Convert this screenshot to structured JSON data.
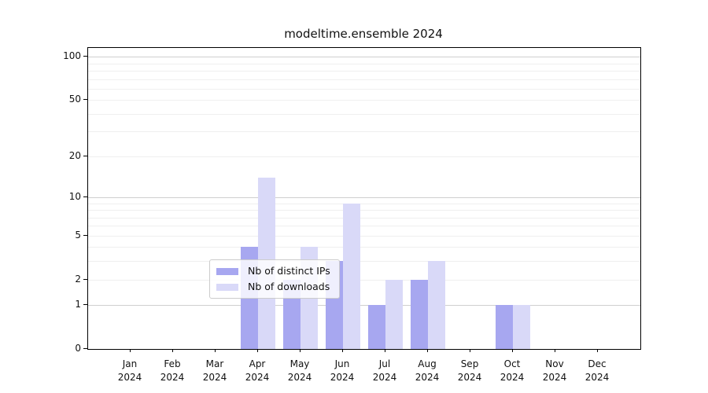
{
  "chart_data": {
    "type": "bar",
    "title": "modeltime.ensemble 2024",
    "x_axis": {
      "categories": [
        "Jan",
        "Feb",
        "Mar",
        "Apr",
        "May",
        "Jun",
        "Jul",
        "Aug",
        "Sep",
        "Oct",
        "Nov",
        "Dec"
      ],
      "year_line": "2024"
    },
    "y_axis": {
      "scale": "log1p",
      "tick_values": [
        100,
        50,
        20,
        10,
        5,
        2,
        1,
        0
      ],
      "tick_labels": [
        "100",
        "50",
        "20",
        "10",
        "5",
        "2",
        "1",
        "0"
      ],
      "max": 115,
      "grid_major": [
        1,
        10,
        100
      ],
      "grid_minor": [
        2,
        3,
        4,
        5,
        6,
        7,
        8,
        9,
        20,
        30,
        40,
        50,
        60,
        70,
        80,
        90
      ]
    },
    "series": [
      {
        "name": "Nb of distinct IPs",
        "color": "#a7a7f0",
        "values": [
          0,
          0,
          0,
          4,
          2,
          3,
          1,
          2,
          0,
          1,
          0,
          0
        ]
      },
      {
        "name": "Nb of downloads",
        "color": "#d9d9f8",
        "values": [
          0,
          0,
          0,
          14,
          4,
          9,
          2,
          3,
          0,
          1,
          0,
          0
        ]
      }
    ],
    "legend_position": "bottom-center",
    "grid": "on"
  },
  "colors": {
    "background": "#ffffff",
    "axis": "#000000",
    "grid_major": "#cfcfcf",
    "grid_minor": "#efefef",
    "text": "#111111"
  }
}
